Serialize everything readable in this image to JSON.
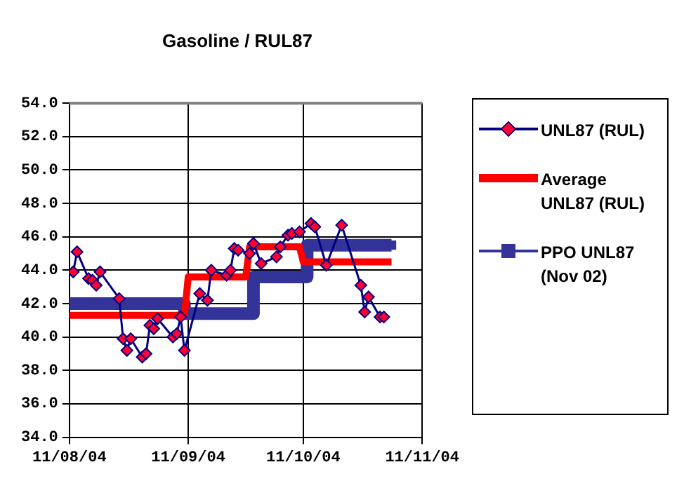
{
  "chart_data": {
    "type": "line",
    "title": "Gasoline / RUL87",
    "xlim": [
      "2004-08-11",
      "2004-11-11"
    ],
    "xticks": [
      {
        "value": "2004-08-11",
        "label": "11/08/04"
      },
      {
        "value": "2004-09-11",
        "label": "11/09/04"
      },
      {
        "value": "2004-10-11",
        "label": "11/10/04"
      },
      {
        "value": "2004-11-11",
        "label": "11/11/04"
      }
    ],
    "ylim": [
      34,
      54
    ],
    "yticks": [
      {
        "value": 34,
        "label": "34.0"
      },
      {
        "value": 36,
        "label": "36.0"
      },
      {
        "value": 38,
        "label": "38.0"
      },
      {
        "value": 40,
        "label": "40.0"
      },
      {
        "value": 42,
        "label": "42.0"
      },
      {
        "value": 44,
        "label": "44.0"
      },
      {
        "value": 46,
        "label": "46.0"
      },
      {
        "value": 48,
        "label": "48.0"
      },
      {
        "value": 50,
        "label": "50.0"
      },
      {
        "value": 52,
        "label": "52.0"
      },
      {
        "value": 54,
        "label": "54.0"
      }
    ],
    "grid": true,
    "legend": "right",
    "series": [
      {
        "name": "UNL87 (RUL)",
        "color": "#000080",
        "marker": "diamond",
        "x": [
          "2004-08-12",
          "2004-08-13",
          "2004-08-16",
          "2004-08-17",
          "2004-08-18",
          "2004-08-19",
          "2004-08-24",
          "2004-08-25",
          "2004-08-26",
          "2004-08-27",
          "2004-08-30",
          "2004-08-31",
          "2004-09-01",
          "2004-09-02",
          "2004-09-03",
          "2004-09-07",
          "2004-09-08",
          "2004-09-09",
          "2004-09-10",
          "2004-09-14",
          "2004-09-16",
          "2004-09-17",
          "2004-09-21",
          "2004-09-22",
          "2004-09-23",
          "2004-09-24",
          "2004-09-27",
          "2004-09-28",
          "2004-09-30",
          "2004-10-04",
          "2004-10-05",
          "2004-10-07",
          "2004-10-08",
          "2004-10-10",
          "2004-10-13",
          "2004-10-14",
          "2004-10-17",
          "2004-10-21",
          "2004-10-26",
          "2004-10-27",
          "2004-10-28",
          "2004-10-31",
          "2004-11-01"
        ],
        "values": [
          43.9,
          45.1,
          43.5,
          43.4,
          43.1,
          43.9,
          42.3,
          39.9,
          39.2,
          39.9,
          38.8,
          39.0,
          40.7,
          40.5,
          41.1,
          40.0,
          40.2,
          41.2,
          39.2,
          42.6,
          42.2,
          44.0,
          43.7,
          44.0,
          45.3,
          45.2,
          45.0,
          45.6,
          44.4,
          44.8,
          45.4,
          46.1,
          46.2,
          46.3,
          46.8,
          46.6,
          44.3,
          46.7,
          43.1,
          41.5,
          42.4,
          41.2,
          41.2
        ]
      },
      {
        "name": "Average UNL87 (RUL)",
        "color": "#ff0000",
        "marker": "none",
        "x": [
          "2004-08-11",
          "2004-09-10",
          "2004-09-11",
          "2004-09-26",
          "2004-09-27",
          "2004-10-10",
          "2004-10-11",
          "2004-11-03"
        ],
        "values": [
          41.3,
          41.3,
          43.6,
          43.6,
          45.4,
          45.4,
          44.5,
          44.5
        ]
      },
      {
        "name": "PPO UNL87 (Nov 02)",
        "color": "#333399",
        "marker": "square",
        "x": [
          "2004-08-11",
          "2004-09-10",
          "2004-09-10",
          "2004-09-28",
          "2004-09-28",
          "2004-10-12",
          "2004-10-12",
          "2004-11-03"
        ],
        "values": [
          42.0,
          42.0,
          41.4,
          41.4,
          43.6,
          43.6,
          45.5,
          45.5
        ]
      }
    ]
  }
}
